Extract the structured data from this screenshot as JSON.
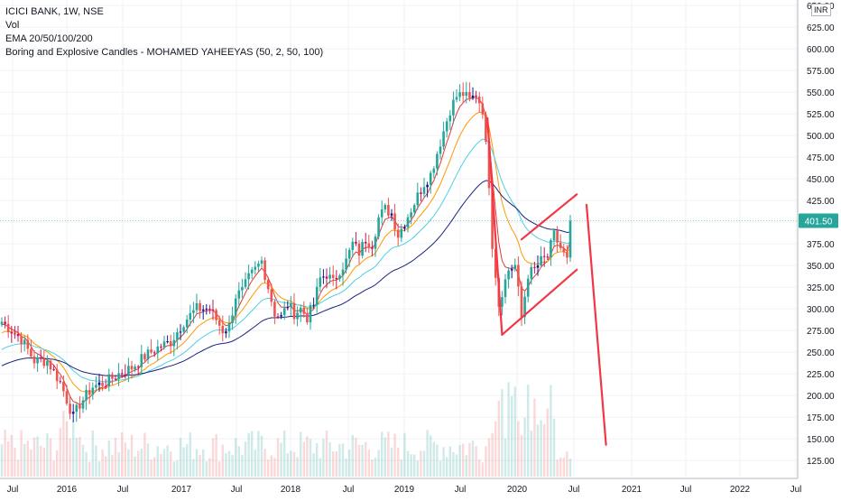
{
  "legend": {
    "symbol": "ICICI BANK, 1W, NSE",
    "volume": "Vol",
    "ema": "EMA 20/50/100/200",
    "indicator": "Boring and Explosive Candles - MOHAMED YAHEEYAS (50, 2, 50, 100)"
  },
  "currency": "INR",
  "last_price_label": "401.50",
  "colors": {
    "up": "#26a69a",
    "down": "#ef5350",
    "doji_base_up": "#0d1c8c",
    "doji_base_down": "#c2185b",
    "ema20": "#e53935",
    "ema50": "#ff9800",
    "ema100": "#4dd0e1",
    "ema200": "#1a237e",
    "drawing": "#f23645",
    "grid": "#eef0f3",
    "axis_text": "#131722",
    "price_label_bg": "#26a69a"
  },
  "chart_data": {
    "type": "candlestick",
    "title": "ICICI BANK, 1W, NSE",
    "ylim": [
      115,
      655
    ],
    "yticks": [
      "650.00",
      "625.00",
      "600.00",
      "575.00",
      "550.00",
      "525.00",
      "500.00",
      "475.00",
      "450.00",
      "425.00",
      "400.00",
      "375.00",
      "350.00",
      "325.00",
      "300.00",
      "275.00",
      "250.00",
      "225.00",
      "200.00",
      "175.00",
      "150.00",
      "125.00"
    ],
    "xticks": [
      "Jul",
      "2016",
      "Jul",
      "2017",
      "Jul",
      "2018",
      "Jul",
      "2019",
      "Jul",
      "2020",
      "Jul",
      "2021",
      "Jul",
      "2022",
      "Jul"
    ],
    "last_price": 401.5,
    "price_anchors": [
      [
        0,
        285
      ],
      [
        6,
        265
      ],
      [
        10,
        240
      ],
      [
        14,
        240
      ],
      [
        18,
        215
      ],
      [
        20,
        195
      ],
      [
        22,
        175
      ],
      [
        24,
        190
      ],
      [
        28,
        210
      ],
      [
        32,
        215
      ],
      [
        36,
        225
      ],
      [
        40,
        232
      ],
      [
        44,
        245
      ],
      [
        48,
        255
      ],
      [
        52,
        262
      ],
      [
        56,
        285
      ],
      [
        60,
        300
      ],
      [
        64,
        300
      ],
      [
        68,
        275
      ],
      [
        70,
        280
      ],
      [
        72,
        315
      ],
      [
        74,
        320
      ],
      [
        76,
        335
      ],
      [
        78,
        345
      ],
      [
        80,
        355
      ],
      [
        82,
        325
      ],
      [
        84,
        295
      ],
      [
        86,
        290
      ],
      [
        88,
        305
      ],
      [
        90,
        295
      ],
      [
        92,
        300
      ],
      [
        94,
        290
      ],
      [
        96,
        305
      ],
      [
        98,
        335
      ],
      [
        100,
        340
      ],
      [
        102,
        330
      ],
      [
        104,
        345
      ],
      [
        106,
        355
      ],
      [
        108,
        375
      ],
      [
        110,
        365
      ],
      [
        112,
        380
      ],
      [
        114,
        375
      ],
      [
        116,
        405
      ],
      [
        118,
        415
      ],
      [
        120,
        410
      ],
      [
        122,
        385
      ],
      [
        124,
        400
      ],
      [
        126,
        415
      ],
      [
        128,
        430
      ],
      [
        130,
        445
      ],
      [
        132,
        455
      ],
      [
        134,
        480
      ],
      [
        136,
        505
      ],
      [
        138,
        530
      ],
      [
        140,
        545
      ],
      [
        142,
        548
      ],
      [
        144,
        540
      ],
      [
        146,
        548
      ],
      [
        148,
        530
      ],
      [
        150,
        445
      ],
      [
        151,
        375
      ],
      [
        152,
        340
      ],
      [
        153,
        305
      ],
      [
        154,
        320
      ],
      [
        156,
        345
      ],
      [
        158,
        350
      ],
      [
        160,
        290
      ],
      [
        162,
        340
      ],
      [
        164,
        345
      ],
      [
        166,
        355
      ],
      [
        168,
        360
      ],
      [
        170,
        385
      ],
      [
        172,
        370
      ],
      [
        174,
        355
      ],
      [
        175,
        400
      ]
    ],
    "volume_scale": [
      0,
      260
    ],
    "ema_periods": [
      20,
      50,
      100,
      200
    ],
    "ema_seeds": [
      280,
      270,
      250,
      232
    ],
    "ema_names": [
      "EMA 20",
      "EMA 50",
      "EMA 100",
      "EMA 200"
    ],
    "annotations": {
      "pole": [
        [
          149.5,
          520
        ],
        [
          154,
          270
        ]
      ],
      "lower_trend": [
        [
          154,
          270
        ],
        [
          177,
          345
        ]
      ],
      "upper_trend": [
        [
          160,
          380
        ],
        [
          177,
          432
        ]
      ],
      "projection": [
        [
          180,
          420
        ],
        [
          186,
          143
        ]
      ]
    },
    "total_weeks": 238
  }
}
